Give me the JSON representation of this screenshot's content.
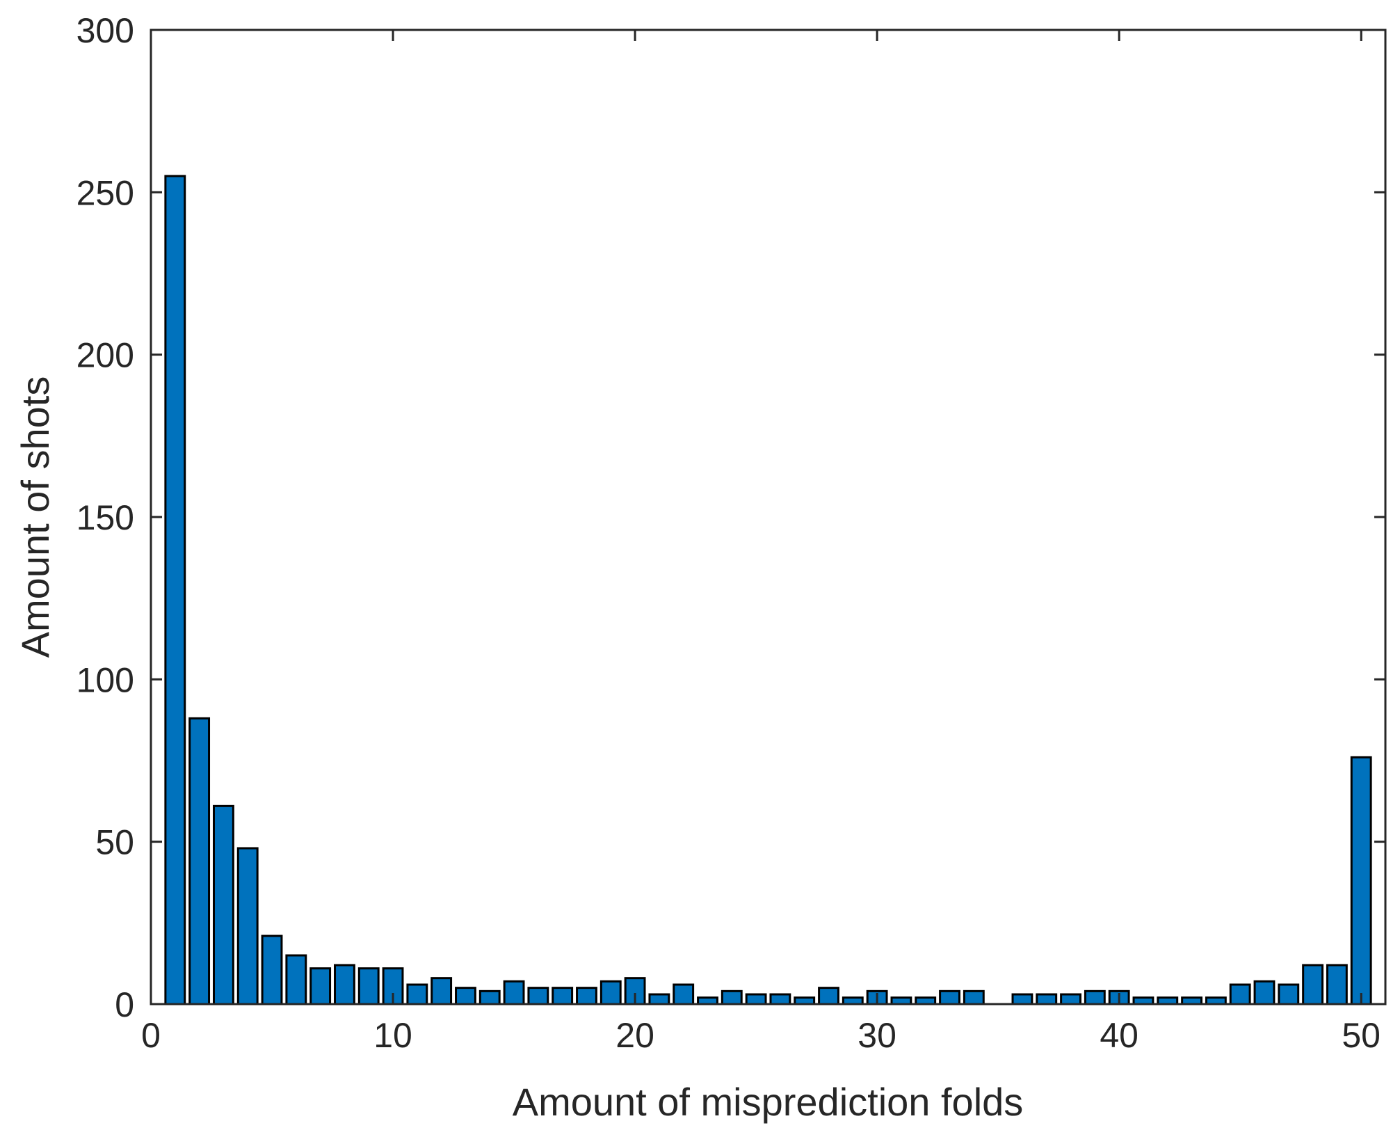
{
  "chart_data": {
    "type": "bar",
    "title": "",
    "xlabel": "Amount of misprediction folds",
    "ylabel": "Amount of shots",
    "xlim": [
      0,
      51
    ],
    "ylim": [
      0,
      300
    ],
    "xticks": [
      0,
      10,
      20,
      30,
      40,
      50
    ],
    "yticks": [
      0,
      50,
      100,
      150,
      200,
      250,
      300
    ],
    "grid": false,
    "bar_color": "#0072bd",
    "edge_color": "#000000",
    "x": [
      1,
      2,
      3,
      4,
      5,
      6,
      7,
      8,
      9,
      10,
      11,
      12,
      13,
      14,
      15,
      16,
      17,
      18,
      19,
      20,
      21,
      22,
      23,
      24,
      25,
      26,
      27,
      28,
      29,
      30,
      31,
      32,
      33,
      34,
      35,
      36,
      37,
      38,
      39,
      40,
      41,
      42,
      43,
      44,
      45,
      46,
      47,
      48,
      49,
      50
    ],
    "values": [
      255,
      88,
      61,
      48,
      21,
      15,
      11,
      12,
      11,
      11,
      6,
      8,
      5,
      4,
      7,
      5,
      5,
      5,
      7,
      8,
      3,
      6,
      2,
      4,
      3,
      3,
      2,
      5,
      2,
      4,
      2,
      2,
      4,
      4,
      0,
      3,
      3,
      3,
      4,
      4,
      2,
      2,
      2,
      2,
      6,
      7,
      6,
      12,
      12,
      76
    ]
  }
}
